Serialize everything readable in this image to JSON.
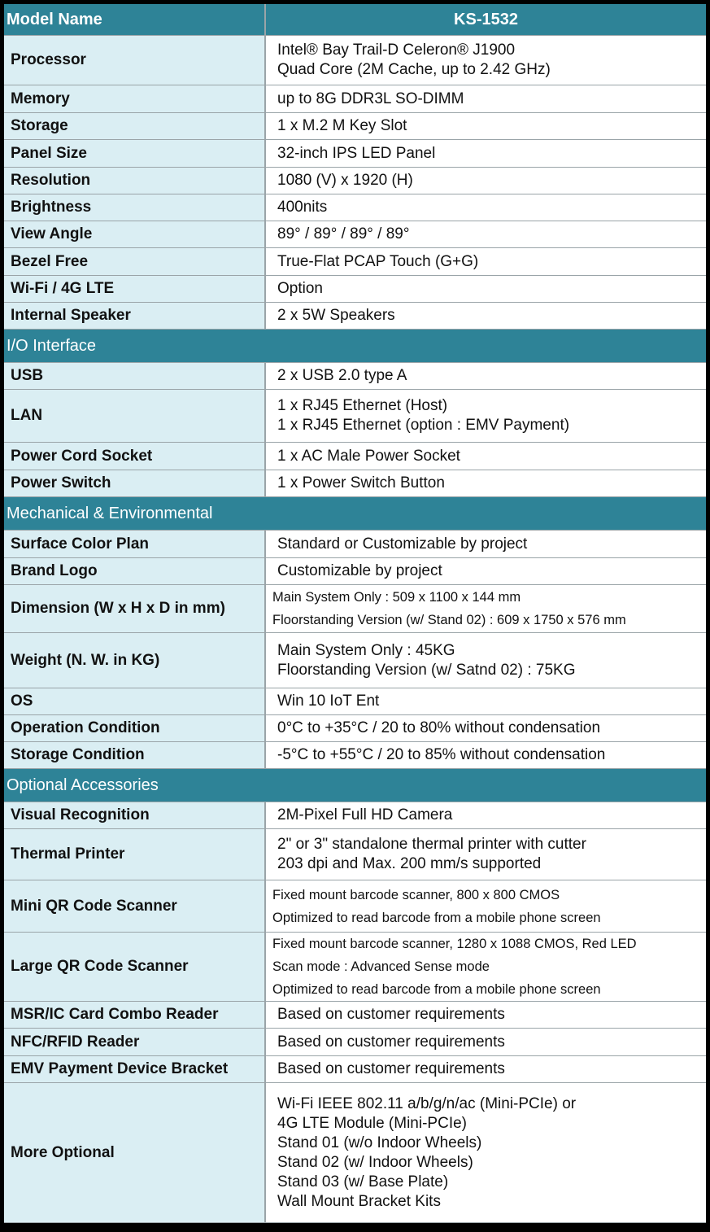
{
  "header": {
    "label": "Model Name",
    "model": "KS-1532"
  },
  "colors": {
    "header": "#2E8397",
    "label_bg": "#DAEEF3",
    "value_bg": "#FFFFFF"
  },
  "sections": [
    {
      "title": "",
      "rows": [
        {
          "label": "Processor",
          "values": [
            "Intel® Bay Trail-D Celeron® J1900",
            "Quad Core (2M Cache, up to 2.42 GHz)"
          ]
        },
        {
          "label": "Memory",
          "values": [
            "up to 8G DDR3L SO-DIMM"
          ]
        },
        {
          "label": "Storage",
          "values": [
            "1 x  M.2 M Key Slot"
          ]
        },
        {
          "label": "Panel Size",
          "values": [
            "32-inch IPS LED Panel"
          ]
        },
        {
          "label": "Resolution",
          "values": [
            "1080 (V) x 1920 (H)"
          ]
        },
        {
          "label": "Brightness",
          "values": [
            "400nits"
          ]
        },
        {
          "label": "View Angle",
          "values": [
            "89° / 89° / 89° / 89°"
          ]
        },
        {
          "label": "Bezel Free",
          "values": [
            "True-Flat PCAP Touch (G+G)"
          ]
        },
        {
          "label": "Wi-Fi / 4G LTE",
          "values": [
            "Option"
          ]
        },
        {
          "label": "Internal Speaker",
          "values": [
            "2 x 5W Speakers"
          ]
        }
      ]
    },
    {
      "title": "I/O Interface",
      "rows": [
        {
          "label": "USB",
          "values": [
            "2 x USB 2.0 type A"
          ]
        },
        {
          "label": "LAN",
          "values": [
            "1 x RJ45 Ethernet (Host)",
            "1 x RJ45 Ethernet (option : EMV Payment)"
          ]
        },
        {
          "label": "Power Cord Socket",
          "values": [
            "1 x AC Male Power Socket"
          ]
        },
        {
          "label": "Power Switch",
          "values": [
            "1 x Power Switch Button"
          ]
        }
      ]
    },
    {
      "title": "Mechanical & Environmental",
      "rows": [
        {
          "label": "Surface Color Plan",
          "values": [
            "Standard or Customizable by project"
          ]
        },
        {
          "label": "Brand Logo",
          "values": [
            "Customizable by project"
          ]
        },
        {
          "label": "Dimension (W x H x D in mm)",
          "small": true,
          "values": [
            "Main System Only : 509 x 1100 x 144 mm",
            "Floorstanding Version (w/ Stand 02) : 609  x 1750 x 576 mm"
          ]
        },
        {
          "label": "Weight  (N. W. in KG)",
          "values": [
            "Main System Only : 45KG",
            "Floorstanding Version (w/ Satnd 02) : 75KG"
          ]
        },
        {
          "label": "OS",
          "values": [
            "Win 10 IoT Ent"
          ]
        },
        {
          "label": "Operation Condition",
          "values": [
            "0°C to +35°C / 20 to 80% without condensation"
          ]
        },
        {
          "label": "Storage Condition",
          "values": [
            "-5°C to +55°C / 20 to 85% without condensation"
          ]
        }
      ]
    },
    {
      "title": "Optional Accessories",
      "rows": [
        {
          "label": "Visual Recognition",
          "values": [
            "2M-Pixel  Full HD Camera"
          ]
        },
        {
          "label": "Thermal Printer",
          "values": [
            "2\" or 3\" standalone thermal printer with cutter",
            "203 dpi and Max. 200 mm/s supported"
          ]
        },
        {
          "label": "Mini QR Code Scanner",
          "small": true,
          "values": [
            "Fixed mount barcode scanner, 800 x 800 CMOS",
            "Optimized to read barcode from a mobile phone screen"
          ]
        },
        {
          "label": "Large QR Code Scanner",
          "small": true,
          "values": [
            "Fixed mount barcode scanner, 1280 x 1088 CMOS, Red LED",
            "Scan mode : Advanced Sense mode",
            "Optimized to read barcode from a mobile phone screen"
          ]
        },
        {
          "label": "MSR/IC Card Combo Reader",
          "values": [
            "Based on customer requirements"
          ]
        },
        {
          "label": "NFC/RFID Reader",
          "values": [
            "Based on customer requirements"
          ]
        },
        {
          "label": "EMV Payment Device Bracket",
          "values": [
            "Based on customer requirements"
          ]
        },
        {
          "label": "More Optional",
          "values": [
            "Wi-Fi IEEE 802.11 a/b/g/n/ac (Mini-PCIe) or",
            "4G LTE Module (Mini-PCIe)",
            "Stand 01 (w/o Indoor Wheels)",
            "Stand 02 (w/ Indoor Wheels)",
            "Stand 03 (w/ Base Plate)",
            "Wall Mount Bracket Kits"
          ]
        }
      ]
    }
  ]
}
